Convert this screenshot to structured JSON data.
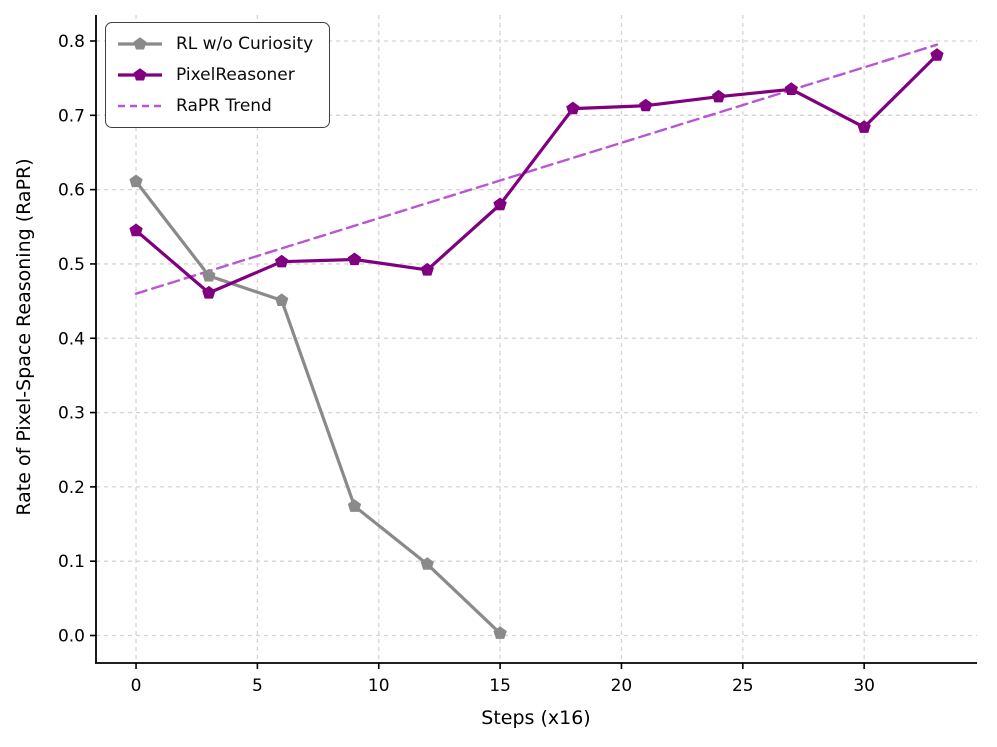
{
  "chart_data": {
    "type": "line",
    "title": "",
    "xlabel": "Steps (x16)",
    "ylabel": "Rate of Pixel-Space Reasoning (RaPR)",
    "xlim": [
      -1.65,
      34.65
    ],
    "ylim": [
      -0.037,
      0.835
    ],
    "xticks": [
      0,
      5,
      10,
      15,
      20,
      25,
      30
    ],
    "yticks": [
      0.0,
      0.1,
      0.2,
      0.3,
      0.4,
      0.5,
      0.6,
      0.7,
      0.8
    ],
    "grid": true,
    "grid_color": "#d4d4d4",
    "axis_color": "#000000",
    "legend_position": "upper-left",
    "series": [
      {
        "name": "RL w/o Curiosity",
        "color": "#8a8a8a",
        "style": "solid",
        "marker": "pentagon",
        "x": [
          0,
          3,
          6,
          9,
          12,
          15
        ],
        "y": [
          0.611,
          0.484,
          0.451,
          0.174,
          0.096,
          0.003
        ]
      },
      {
        "name": "PixelReasoner",
        "color": "#800080",
        "style": "solid",
        "marker": "pentagon",
        "x": [
          0,
          3,
          6,
          9,
          12,
          15,
          18,
          21,
          24,
          27,
          30,
          33
        ],
        "y": [
          0.545,
          0.461,
          0.503,
          0.506,
          0.492,
          0.58,
          0.709,
          0.713,
          0.725,
          0.735,
          0.684,
          0.781
        ]
      },
      {
        "name": "RaPR Trend",
        "color": "#ba55d3",
        "style": "dashed",
        "marker": "none",
        "x": [
          0,
          33
        ],
        "y": [
          0.46,
          0.795
        ]
      }
    ]
  }
}
